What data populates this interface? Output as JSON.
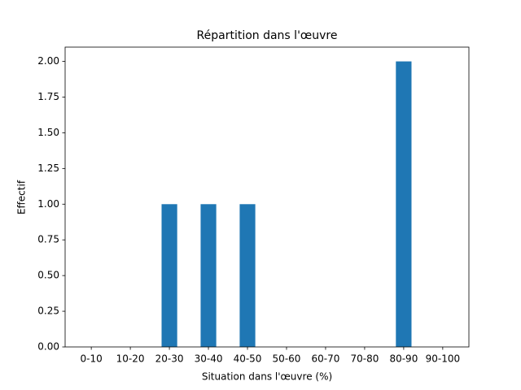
{
  "chart_data": {
    "type": "bar",
    "title": "Répartition dans l'œuvre",
    "xlabel": "Situation dans l'œuvre (%)",
    "ylabel": "Effectif",
    "categories": [
      "0-10",
      "10-20",
      "20-30",
      "30-40",
      "40-50",
      "50-60",
      "60-70",
      "70-80",
      "80-90",
      "90-100"
    ],
    "values": [
      0,
      0,
      1,
      1,
      1,
      0,
      0,
      0,
      2,
      0
    ],
    "color": "#1f77b4",
    "ylim": [
      0,
      2.1
    ],
    "yticks": [
      {
        "value": 0,
        "label": "0.00"
      },
      {
        "value": 0.25,
        "label": "0.25"
      },
      {
        "value": 0.5,
        "label": "0.50"
      },
      {
        "value": 0.75,
        "label": "0.75"
      },
      {
        "value": 1,
        "label": "1.00"
      },
      {
        "value": 1.25,
        "label": "1.25"
      },
      {
        "value": 1.5,
        "label": "1.50"
      },
      {
        "value": 1.75,
        "label": "1.75"
      },
      {
        "value": 2,
        "label": "2.00"
      }
    ],
    "grid": false
  }
}
